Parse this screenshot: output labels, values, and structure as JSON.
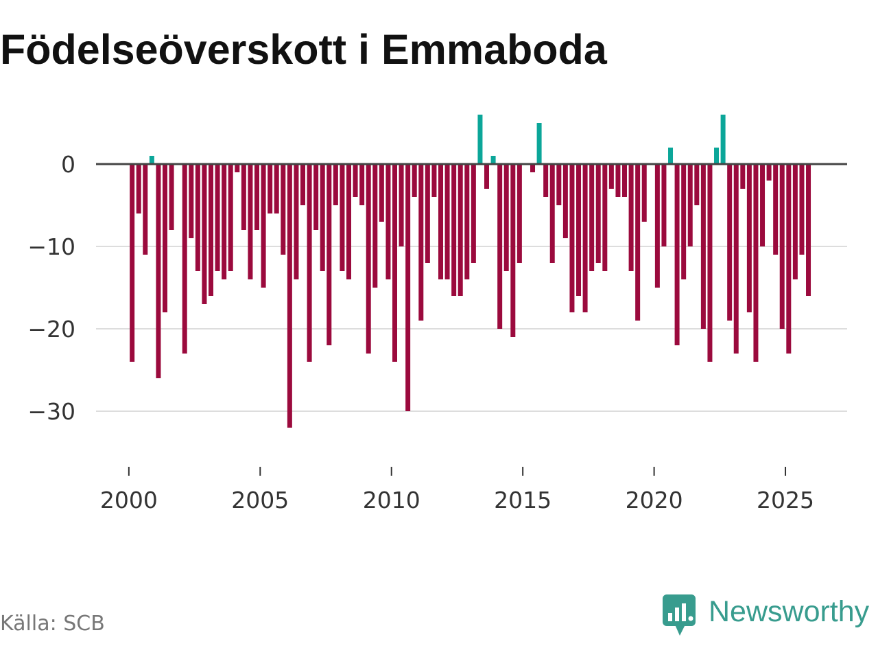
{
  "chart_data": {
    "type": "bar",
    "title": "Födelseöverskott i Emmaboda",
    "xlabel": "",
    "ylabel": "",
    "x_start": 2000,
    "x_step": 0.25,
    "values": [
      -24,
      -6,
      -11,
      1,
      -26,
      -18,
      -8,
      0,
      -23,
      -9,
      -13,
      -17,
      -16,
      -13,
      -14,
      -13,
      -1,
      -8,
      -14,
      -8,
      -15,
      -6,
      -6,
      -11,
      -32,
      -14,
      -5,
      -24,
      -8,
      -13,
      -22,
      -5,
      -13,
      -14,
      -4,
      -5,
      -23,
      -15,
      -7,
      -14,
      -24,
      -10,
      -30,
      -4,
      -19,
      -12,
      -4,
      -14,
      -14,
      -16,
      -16,
      -14,
      -12,
      6,
      -3,
      1,
      -20,
      -13,
      -21,
      -12,
      0,
      -1,
      5,
      -4,
      -12,
      -5,
      -9,
      -18,
      -16,
      -18,
      -13,
      -12,
      -13,
      -3,
      -4,
      -4,
      -13,
      -19,
      -7,
      0,
      -15,
      -10,
      2,
      -22,
      -14,
      -10,
      -5,
      -20,
      -24,
      2,
      6,
      -19,
      -23,
      -3,
      -18,
      -24,
      -10,
      -2,
      -11,
      -20,
      -23,
      -14,
      -11,
      -16
    ],
    "x_ticks": [
      2000,
      2005,
      2010,
      2015,
      2020,
      2025
    ],
    "x_tick_labels": [
      "2000",
      "2005",
      "2010",
      "2015",
      "2020",
      "2025"
    ],
    "y_ticks": [
      0,
      -10,
      -20,
      -30
    ],
    "y_tick_labels": [
      "0",
      "−10",
      "−20",
      "−30"
    ],
    "xlim": [
      1998.75,
      2027.35
    ],
    "ylim": [
      -35,
      7
    ],
    "grid": true,
    "colors": {
      "negative": "#9b0a3d",
      "positive": "#0ba699",
      "zero_line": "#444444",
      "grid": "#dddddd",
      "axis_tick": "#333333"
    }
  },
  "source": "Källa: SCB",
  "brand": {
    "name": "Newsworthy",
    "color": "#389c8e",
    "icon": "newsworthy-logo-icon"
  }
}
